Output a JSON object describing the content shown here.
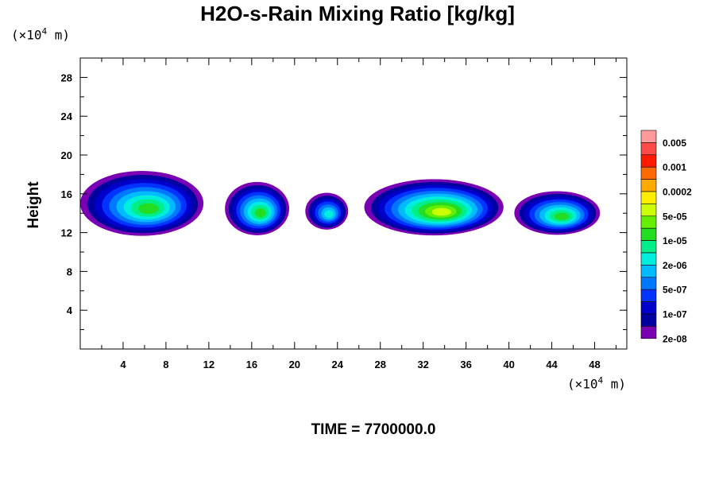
{
  "chart_data": {
    "type": "heatmap",
    "title": "H2O-s-Rain Mixing Ratio [kg/kg]",
    "ylabel": "Height",
    "x_unit_prefix": "(×10",
    "x_unit_exp": "4",
    "x_unit_suffix": " m)",
    "y_unit_prefix": "(×10",
    "y_unit_exp": "4",
    "y_unit_suffix": " m)",
    "xlim": [
      0,
      51
    ],
    "ylim": [
      0,
      30
    ],
    "x_ticks": [
      4,
      8,
      12,
      16,
      20,
      24,
      28,
      32,
      36,
      40,
      44,
      48
    ],
    "y_ticks": [
      4,
      8,
      12,
      16,
      20,
      24,
      28
    ],
    "legend_labels": [
      "0.005",
      "0.001",
      "0.0002",
      "5e-05",
      "1e-05",
      "2e-06",
      "5e-07",
      "1e-07",
      "2e-08"
    ],
    "legend_colors": [
      "#ff9a9a",
      "#ff4a4a",
      "#ff1a00",
      "#ff6a00",
      "#ffaa00",
      "#ffee00",
      "#ccff00",
      "#66ee00",
      "#22dd22",
      "#00ee88",
      "#00eedd",
      "#00bbff",
      "#0077ff",
      "#0033ff",
      "#0000cc",
      "#0000a0",
      "#7a00b4"
    ],
    "cells": [
      {
        "x_range": [
          0,
          11.5
        ],
        "y_range": [
          12,
          18.7
        ],
        "peak": 2e-05
      },
      {
        "x_range": [
          13.5,
          19.5
        ],
        "y_range": [
          12,
          17.5
        ],
        "peak": 2e-05
      },
      {
        "x_range": [
          21,
          25
        ],
        "y_range": [
          12.5,
          16.3
        ],
        "peak": 5e-06
      },
      {
        "x_range": [
          26.5,
          39.5
        ],
        "y_range": [
          12,
          17.8
        ],
        "peak": 0.0001
      },
      {
        "x_range": [
          40.5,
          48.5
        ],
        "y_range": [
          12,
          16.5
        ],
        "peak": 2e-05
      }
    ]
  },
  "time_label": "TIME = 7700000.0"
}
